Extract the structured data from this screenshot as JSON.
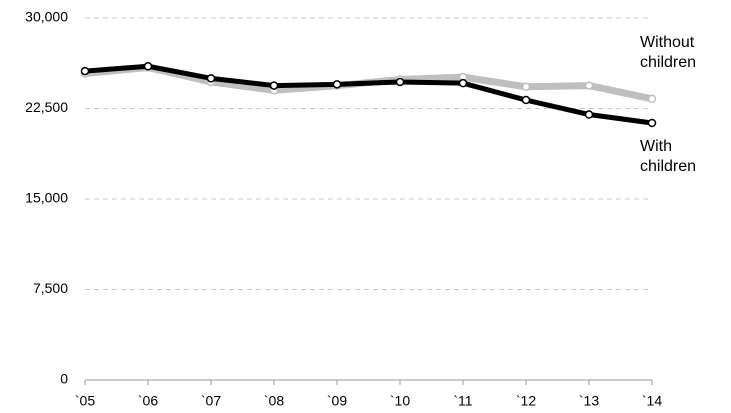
{
  "chart_data": {
    "type": "line",
    "categories": [
      "`05",
      "`06",
      "`07",
      "`08",
      "`09",
      "`10",
      "`11",
      "`12",
      "`13",
      "`14"
    ],
    "series": [
      {
        "name": "With children",
        "color": "#000000",
        "values": [
          25600,
          26000,
          25000,
          24400,
          24500,
          24700,
          24600,
          23200,
          22000,
          21300
        ]
      },
      {
        "name": "Without children",
        "color": "#bfbfbf",
        "values": [
          25400,
          25900,
          24700,
          24000,
          24400,
          24900,
          25100,
          24300,
          24400,
          23300
        ]
      }
    ],
    "ylim": [
      0,
      30000
    ],
    "yticks": [
      0,
      {
        "value": 7500,
        "label": "7,500"
      },
      {
        "value": 15000,
        "label": "15,000"
      },
      {
        "value": 22500,
        "label": "22,500"
      },
      {
        "value": 30000,
        "label": "30,000"
      }
    ],
    "grid": true
  }
}
